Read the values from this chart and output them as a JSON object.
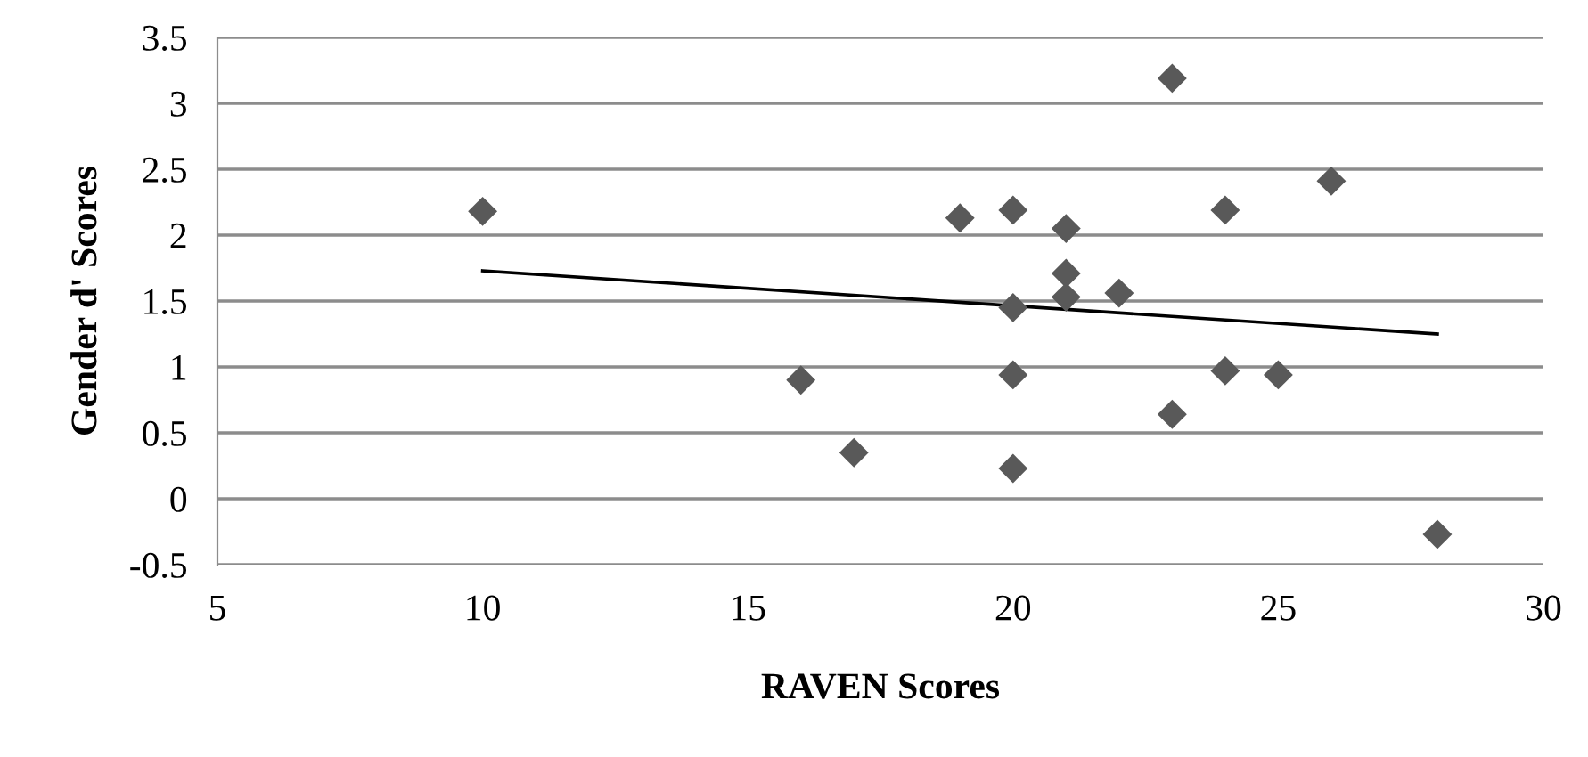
{
  "chart_data": {
    "type": "scatter",
    "xlabel": "RAVEN Scores",
    "ylabel": "Gender d' Scores",
    "xlim": [
      5,
      30
    ],
    "xticks": [
      5,
      10,
      15,
      20,
      25,
      30
    ],
    "ylim": [
      -0.5,
      3.5
    ],
    "yticks": [
      -0.5,
      0,
      0.5,
      1,
      1.5,
      2,
      2.5,
      3,
      3.5
    ],
    "grid": "y",
    "series": [
      {
        "marker": "diamond",
        "color": "#595959",
        "x": [
          10,
          16,
          17,
          19,
          20,
          20,
          20,
          20,
          21,
          21,
          21,
          22,
          23,
          23,
          24,
          24,
          25,
          26,
          28
        ],
        "values": [
          2.18,
          0.9,
          0.35,
          2.13,
          2.19,
          1.45,
          0.94,
          0.23,
          2.05,
          1.71,
          1.53,
          1.56,
          3.19,
          0.64,
          2.19,
          0.97,
          0.94,
          2.41,
          -0.27
        ]
      },
      {
        "type": "line",
        "marker": "none",
        "color": "#000000",
        "x": [
          10,
          28
        ],
        "values": [
          1.73,
          1.25
        ]
      }
    ]
  }
}
